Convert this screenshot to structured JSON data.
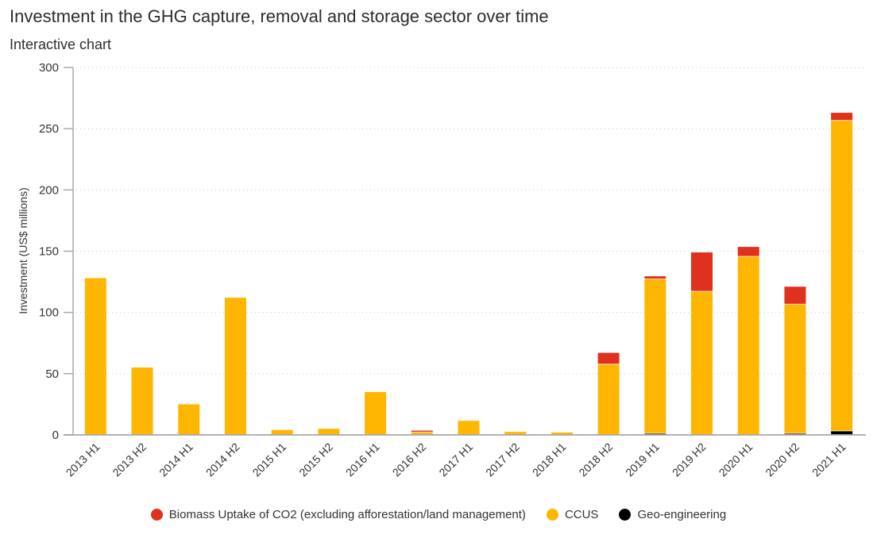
{
  "header": {
    "title": "Investment in the GHG capture, removal and storage sector over time",
    "subtitle": "Interactive chart"
  },
  "chart_data": {
    "type": "bar",
    "stacked": true,
    "title": "Investment in the GHG capture, removal and storage sector over time",
    "xlabel": "",
    "ylabel": "Investment (US$ millions)",
    "ylim": [
      0,
      300
    ],
    "yticks": [
      0,
      50,
      100,
      150,
      200,
      250,
      300
    ],
    "grid": true,
    "legend_position": "bottom",
    "categories": [
      "2013 H1",
      "2013 H2",
      "2014 H1",
      "2014 H2",
      "2015 H1",
      "2015 H2",
      "2016 H1",
      "2016 H2",
      "2017 H1",
      "2017 H2",
      "2018 H1",
      "2018 H2",
      "2019 H1",
      "2019 H2",
      "2020 H1",
      "2020 H2",
      "2021 H1"
    ],
    "series": [
      {
        "name": "Geo-engineering",
        "color": "#000000",
        "values": [
          0,
          0,
          0,
          0,
          0,
          0,
          0,
          0,
          0,
          0,
          0,
          0,
          1,
          0,
          0,
          1,
          3
        ]
      },
      {
        "name": "CCUS",
        "color": "#FFB600",
        "values": [
          128,
          55,
          25,
          112,
          4,
          5,
          35,
          2,
          11.5,
          2.5,
          2,
          57.5,
          126,
          117,
          145.5,
          105.5,
          253.5
        ]
      },
      {
        "name": "Biomass Uptake of CO2 (excluding afforestation/land management)",
        "color": "#E0301E",
        "values": [
          0,
          0,
          0,
          0,
          0,
          0,
          0,
          1.5,
          0,
          0,
          0,
          9.5,
          2.5,
          32,
          8,
          14.5,
          6.5
        ]
      }
    ]
  },
  "legend": [
    {
      "label": "Biomass Uptake of CO2 (excluding afforestation/land management)",
      "color": "#E0301E"
    },
    {
      "label": "CCUS",
      "color": "#FFB600"
    },
    {
      "label": "Geo-engineering",
      "color": "#000000"
    }
  ]
}
